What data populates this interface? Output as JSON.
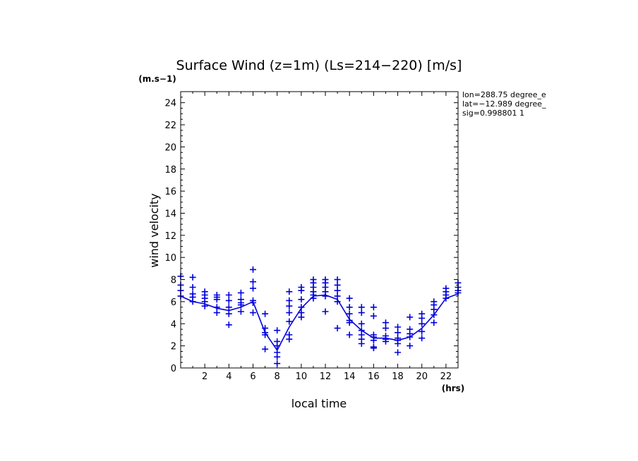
{
  "chart_data": {
    "type": "scatter",
    "title": "Surface Wind (z=1m) (Ls=214−220) [m/s]",
    "ylabel": "wind velocity",
    "y_unit": "(m.s−1)",
    "xlabel": "local time",
    "x_unit": "(hrs)",
    "xlim": [
      0,
      23
    ],
    "ylim": [
      0,
      25
    ],
    "x_ticks": [
      2,
      4,
      6,
      8,
      10,
      12,
      14,
      16,
      18,
      20,
      22
    ],
    "y_ticks": [
      0,
      2,
      4,
      6,
      8,
      10,
      12,
      14,
      16,
      18,
      20,
      22,
      24
    ],
    "annotations": [
      "lon=288.75 degree_e",
      "lat=−12.989 degree_",
      "sig=0.998801 1"
    ],
    "colors": {
      "series": "#0000dd",
      "axes": "#000000"
    },
    "series": [
      {
        "type": "line",
        "points": [
          [
            0,
            6.5
          ],
          [
            1,
            6.0
          ],
          [
            2,
            5.8
          ],
          [
            3,
            5.4
          ],
          [
            4,
            5.2
          ],
          [
            5,
            5.5
          ],
          [
            6,
            6.0
          ],
          [
            7,
            3.2
          ],
          [
            8,
            1.6
          ],
          [
            9,
            3.7
          ],
          [
            10,
            5.4
          ],
          [
            11,
            6.5
          ],
          [
            12,
            6.6
          ],
          [
            13,
            6.2
          ],
          [
            14,
            4.4
          ],
          [
            15,
            3.4
          ],
          [
            16,
            2.7
          ],
          [
            17,
            2.7
          ],
          [
            18,
            2.5
          ],
          [
            19,
            2.8
          ],
          [
            20,
            3.6
          ],
          [
            21,
            4.8
          ],
          [
            22,
            6.3
          ],
          [
            23,
            6.7
          ]
        ]
      },
      {
        "type": "scatter",
        "marker": "+",
        "points": [
          [
            0,
            8.3
          ],
          [
            0,
            7.5
          ],
          [
            0,
            7.0
          ],
          [
            0,
            6.5
          ],
          [
            1,
            8.2
          ],
          [
            1,
            7.3
          ],
          [
            1,
            6.7
          ],
          [
            1,
            6.4
          ],
          [
            1,
            6.0
          ],
          [
            2,
            6.9
          ],
          [
            2,
            6.6
          ],
          [
            2,
            6.3
          ],
          [
            2,
            6.0
          ],
          [
            2,
            5.6
          ],
          [
            3,
            6.6
          ],
          [
            3,
            6.4
          ],
          [
            3,
            6.2
          ],
          [
            3,
            5.5
          ],
          [
            3,
            5.0
          ],
          [
            4,
            6.6
          ],
          [
            4,
            6.1
          ],
          [
            4,
            5.5
          ],
          [
            4,
            4.9
          ],
          [
            4,
            3.9
          ],
          [
            5,
            6.8
          ],
          [
            5,
            6.2
          ],
          [
            5,
            5.9
          ],
          [
            5,
            5.7
          ],
          [
            5,
            5.1
          ],
          [
            6,
            8.9
          ],
          [
            6,
            7.8
          ],
          [
            6,
            7.2
          ],
          [
            6,
            6.1
          ],
          [
            6,
            5.9
          ],
          [
            6,
            5.0
          ],
          [
            7,
            4.9
          ],
          [
            7,
            3.6
          ],
          [
            7,
            3.2
          ],
          [
            7,
            3.0
          ],
          [
            7,
            1.7
          ],
          [
            8,
            3.4
          ],
          [
            8,
            2.4
          ],
          [
            8,
            2.0
          ],
          [
            8,
            1.4
          ],
          [
            8,
            1.0
          ],
          [
            8,
            0.4
          ],
          [
            9,
            6.9
          ],
          [
            9,
            6.1
          ],
          [
            9,
            5.6
          ],
          [
            9,
            5.0
          ],
          [
            9,
            4.2
          ],
          [
            9,
            3.0
          ],
          [
            9,
            2.6
          ],
          [
            10,
            7.3
          ],
          [
            10,
            7.0
          ],
          [
            10,
            6.2
          ],
          [
            10,
            5.5
          ],
          [
            10,
            5.0
          ],
          [
            10,
            4.6
          ],
          [
            11,
            8.0
          ],
          [
            11,
            7.7
          ],
          [
            11,
            7.3
          ],
          [
            11,
            6.9
          ],
          [
            11,
            6.6
          ],
          [
            11,
            6.3
          ],
          [
            12,
            8.0
          ],
          [
            12,
            7.7
          ],
          [
            12,
            7.3
          ],
          [
            12,
            6.9
          ],
          [
            12,
            6.5
          ],
          [
            12,
            5.1
          ],
          [
            13,
            8.0
          ],
          [
            13,
            7.5
          ],
          [
            13,
            7.0
          ],
          [
            13,
            6.5
          ],
          [
            13,
            6.0
          ],
          [
            13,
            3.6
          ],
          [
            14,
            6.3
          ],
          [
            14,
            5.5
          ],
          [
            14,
            4.9
          ],
          [
            14,
            4.3
          ],
          [
            14,
            4.1
          ],
          [
            14,
            3.0
          ],
          [
            15,
            5.5
          ],
          [
            15,
            5.0
          ],
          [
            15,
            4.0
          ],
          [
            15,
            3.4
          ],
          [
            15,
            3.0
          ],
          [
            15,
            2.6
          ],
          [
            15,
            2.2
          ],
          [
            16,
            5.5
          ],
          [
            16,
            4.7
          ],
          [
            16,
            3.0
          ],
          [
            16,
            2.8
          ],
          [
            16,
            2.5
          ],
          [
            16,
            1.9
          ],
          [
            16,
            1.8
          ],
          [
            17,
            4.1
          ],
          [
            17,
            3.6
          ],
          [
            17,
            2.9
          ],
          [
            17,
            2.6
          ],
          [
            17,
            2.4
          ],
          [
            18,
            3.7
          ],
          [
            18,
            3.2
          ],
          [
            18,
            2.7
          ],
          [
            18,
            2.5
          ],
          [
            18,
            2.2
          ],
          [
            18,
            1.4
          ],
          [
            19,
            4.6
          ],
          [
            19,
            3.5
          ],
          [
            19,
            3.1
          ],
          [
            19,
            2.8
          ],
          [
            19,
            2.0
          ],
          [
            20,
            4.9
          ],
          [
            20,
            4.5
          ],
          [
            20,
            4.0
          ],
          [
            20,
            3.3
          ],
          [
            20,
            2.7
          ],
          [
            21,
            6.0
          ],
          [
            21,
            5.7
          ],
          [
            21,
            5.3
          ],
          [
            21,
            4.8
          ],
          [
            21,
            4.1
          ],
          [
            22,
            7.2
          ],
          [
            22,
            6.9
          ],
          [
            22,
            6.6
          ],
          [
            22,
            6.3
          ],
          [
            23,
            7.7
          ],
          [
            23,
            7.3
          ],
          [
            23,
            7.0
          ],
          [
            23,
            6.8
          ]
        ]
      }
    ]
  }
}
